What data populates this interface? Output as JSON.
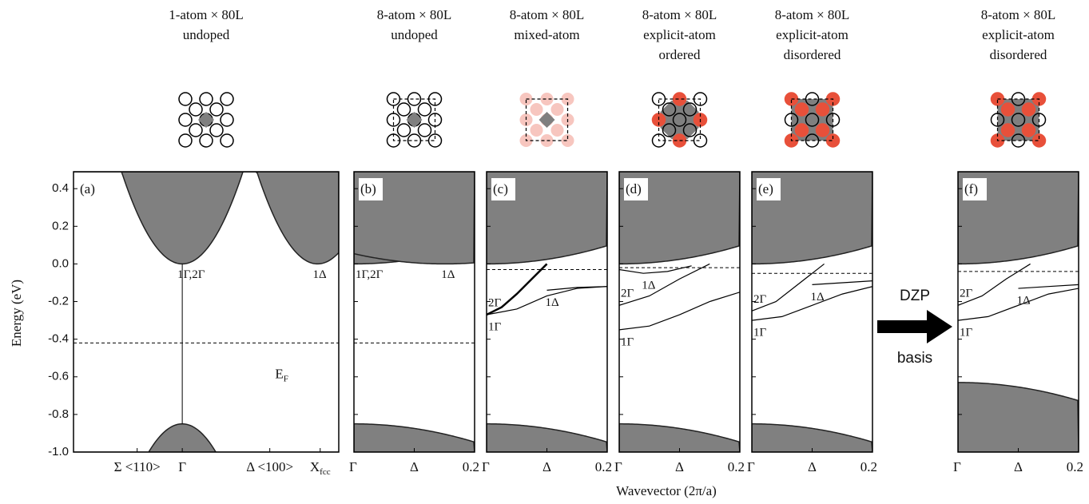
{
  "figure": {
    "ylabel": "Energy (eV)",
    "xlabel": "Wavevector (2π/a)",
    "arrow_text": [
      "DZP",
      "basis"
    ]
  },
  "chart_data": [
    {
      "type": "band",
      "title": [
        "1-atom × 80L",
        "undoped"
      ],
      "panel_label": "(a)",
      "xlim": [
        0,
        1
      ],
      "xticks": [
        {
          "value": 0.24,
          "label": "Σ <110>"
        },
        {
          "value": 0.41,
          "label": "Γ"
        },
        {
          "value": 0.74,
          "label": "Δ <100>"
        },
        {
          "value": 0.93,
          "label": "X",
          "subscript": "fcc"
        }
      ],
      "ylim": [
        -1,
        0.49
      ],
      "yticks": [
        {
          "value": -1,
          "label": "-1.0"
        },
        -0.8,
        -0.6,
        -0.4,
        -0.2,
        {
          "value": 0,
          "label": "0.0"
        },
        0.2,
        0.4
      ],
      "conduction": {
        "x": [
          0.41,
          0.92
        ],
        "values": [
          0.0,
          0.0
        ],
        "labels": [
          "1Γ,2Γ",
          "1Δ"
        ]
      },
      "valence": {
        "x": [
          0.41
        ],
        "values": [
          -0.85
        ]
      },
      "fermi_level": -0.42,
      "fermi_label": {
        "text": "E",
        "subscript": "F"
      },
      "series": []
    },
    {
      "type": "band",
      "title": [
        "8-atom × 80L",
        "undoped"
      ],
      "panel_label": "(b)",
      "xlim": [
        0,
        0.2
      ],
      "xticks": [
        {
          "value": 0,
          "label": "Γ"
        },
        {
          "value": 0.1,
          "label": "Δ"
        },
        0.2
      ],
      "ylim": [
        -1,
        0.49
      ],
      "yticks": [
        {
          "value": -1,
          "label": "-1.0"
        },
        -0.8,
        -0.6,
        -0.4,
        -0.2,
        {
          "value": 0,
          "label": "0.0"
        },
        0.2,
        0.4
      ],
      "conduction": {
        "x": [
          0,
          0.15
        ],
        "values": [
          0.0,
          0.0
        ],
        "labels": [
          "1Γ,2Γ",
          "1Δ"
        ]
      },
      "valence": {
        "x": [
          0
        ],
        "values": [
          -0.85
        ]
      },
      "fermi_level": -0.42,
      "series": []
    },
    {
      "type": "band",
      "title": [
        "8-atom × 80L",
        "mixed-atom"
      ],
      "panel_label": "(c)",
      "xlim": [
        0,
        0.2
      ],
      "xticks": [
        {
          "value": 0,
          "label": "Γ"
        },
        {
          "value": 0.1,
          "label": "Δ"
        },
        0.2
      ],
      "ylim": [
        -1,
        0.49
      ],
      "yticks": [
        {
          "value": -1,
          "label": "-1.0"
        },
        -0.8,
        -0.6,
        -0.4,
        -0.2,
        {
          "value": 0,
          "label": "0.0"
        },
        0.2,
        0.4
      ],
      "conduction": {
        "x": [
          0
        ],
        "values": [
          0.0
        ]
      },
      "valence": {
        "x": [
          0
        ],
        "values": [
          -0.85
        ]
      },
      "fermi_level": -0.03,
      "series": [
        {
          "name": "2Γ",
          "x": [
            0,
            0.025,
            0.05,
            0.075,
            0.1
          ],
          "values": [
            -0.27,
            -0.23,
            -0.16,
            -0.08,
            0.0
          ]
        },
        {
          "name": "1Γ",
          "x": [
            0,
            0.05,
            0.1,
            0.15,
            0.2
          ],
          "values": [
            -0.27,
            -0.24,
            -0.17,
            -0.13,
            -0.12
          ]
        },
        {
          "name": "1Δ",
          "x": [
            0.1,
            0.15,
            0.2
          ],
          "values": [
            -0.14,
            -0.125,
            -0.12
          ]
        }
      ]
    },
    {
      "type": "band",
      "title": [
        "8-atom × 80L",
        "explicit-atom",
        "ordered"
      ],
      "panel_label": "(d)",
      "xlim": [
        0,
        0.2
      ],
      "xticks": [
        {
          "value": 0,
          "label": "Γ"
        },
        {
          "value": 0.1,
          "label": "Δ"
        },
        0.2
      ],
      "ylim": [
        -1,
        0.49
      ],
      "yticks": [
        {
          "value": -1,
          "label": "-1.0"
        },
        -0.8,
        -0.6,
        -0.4,
        -0.2,
        {
          "value": 0,
          "label": "0.0"
        },
        0.2,
        0.4
      ],
      "conduction": {
        "x": [
          0
        ],
        "values": [
          0.0
        ]
      },
      "valence": {
        "x": [
          0
        ],
        "values": [
          -0.85
        ]
      },
      "fermi_level": -0.02,
      "series": [
        {
          "name": "2Γ",
          "x": [
            0,
            0.05,
            0.1,
            0.15
          ],
          "values": [
            -0.22,
            -0.17,
            -0.08,
            0.0
          ]
        },
        {
          "name": "1Γ",
          "x": [
            0,
            0.05,
            0.1,
            0.15,
            0.2
          ],
          "values": [
            -0.35,
            -0.33,
            -0.27,
            -0.2,
            -0.15
          ]
        },
        {
          "name": "1Δ",
          "x": [
            0,
            0.04,
            0.08,
            0.12
          ],
          "values": [
            -0.03,
            -0.05,
            -0.04,
            -0.01
          ]
        }
      ]
    },
    {
      "type": "band",
      "title": [
        "8-atom × 80L",
        "explicit-atom",
        "disordered"
      ],
      "panel_label": "(e)",
      "xlim": [
        0,
        0.2
      ],
      "xticks": [
        {
          "value": 0,
          "label": "Γ"
        },
        {
          "value": 0.1,
          "label": "Δ"
        },
        0.2
      ],
      "ylim": [
        -1,
        0.49
      ],
      "yticks": [
        {
          "value": -1,
          "label": "-1.0"
        },
        -0.8,
        -0.6,
        -0.4,
        -0.2,
        {
          "value": 0,
          "label": "0.0"
        },
        0.2,
        0.4
      ],
      "conduction": {
        "x": [
          0
        ],
        "values": [
          0.0
        ]
      },
      "valence": {
        "x": [
          0
        ],
        "values": [
          -0.85
        ]
      },
      "fermi_level": -0.05,
      "series": [
        {
          "name": "2Γ",
          "x": [
            0,
            0.04,
            0.08,
            0.12
          ],
          "values": [
            -0.25,
            -0.2,
            -0.1,
            0.0
          ]
        },
        {
          "name": "1Γ",
          "x": [
            0,
            0.05,
            0.1,
            0.15,
            0.2
          ],
          "values": [
            -0.3,
            -0.28,
            -0.22,
            -0.16,
            -0.12
          ]
        },
        {
          "name": "1Δ",
          "x": [
            0.1,
            0.15,
            0.2
          ],
          "values": [
            -0.11,
            -0.1,
            -0.09
          ]
        }
      ]
    },
    {
      "type": "band",
      "title": [
        "8-atom × 80L",
        "explicit-atom",
        "disordered"
      ],
      "panel_label": "(f)",
      "xlim": [
        0,
        0.2
      ],
      "xticks": [
        {
          "value": 0,
          "label": "Γ"
        },
        {
          "value": 0.1,
          "label": "Δ"
        },
        0.2
      ],
      "ylim": [
        -1,
        0.49
      ],
      "yticks": [
        {
          "value": -1,
          "label": "-1.0"
        },
        -0.8,
        -0.6,
        -0.4,
        -0.2,
        {
          "value": 0,
          "label": "0.0"
        },
        0.2,
        0.4
      ],
      "conduction": {
        "x": [
          0
        ],
        "values": [
          0.0
        ]
      },
      "valence": {
        "x": [
          0
        ],
        "values": [
          -0.63
        ]
      },
      "fermi_level": -0.04,
      "series": [
        {
          "name": "2Γ",
          "x": [
            0,
            0.04,
            0.08,
            0.12
          ],
          "values": [
            -0.22,
            -0.17,
            -0.08,
            0.0
          ]
        },
        {
          "name": "1Γ",
          "x": [
            0,
            0.05,
            0.1,
            0.15,
            0.2
          ],
          "values": [
            -0.3,
            -0.28,
            -0.22,
            -0.16,
            -0.13
          ]
        },
        {
          "name": "1Δ",
          "x": [
            0.1,
            0.15,
            0.2
          ],
          "values": [
            -0.13,
            -0.12,
            -0.11
          ]
        }
      ]
    }
  ]
}
